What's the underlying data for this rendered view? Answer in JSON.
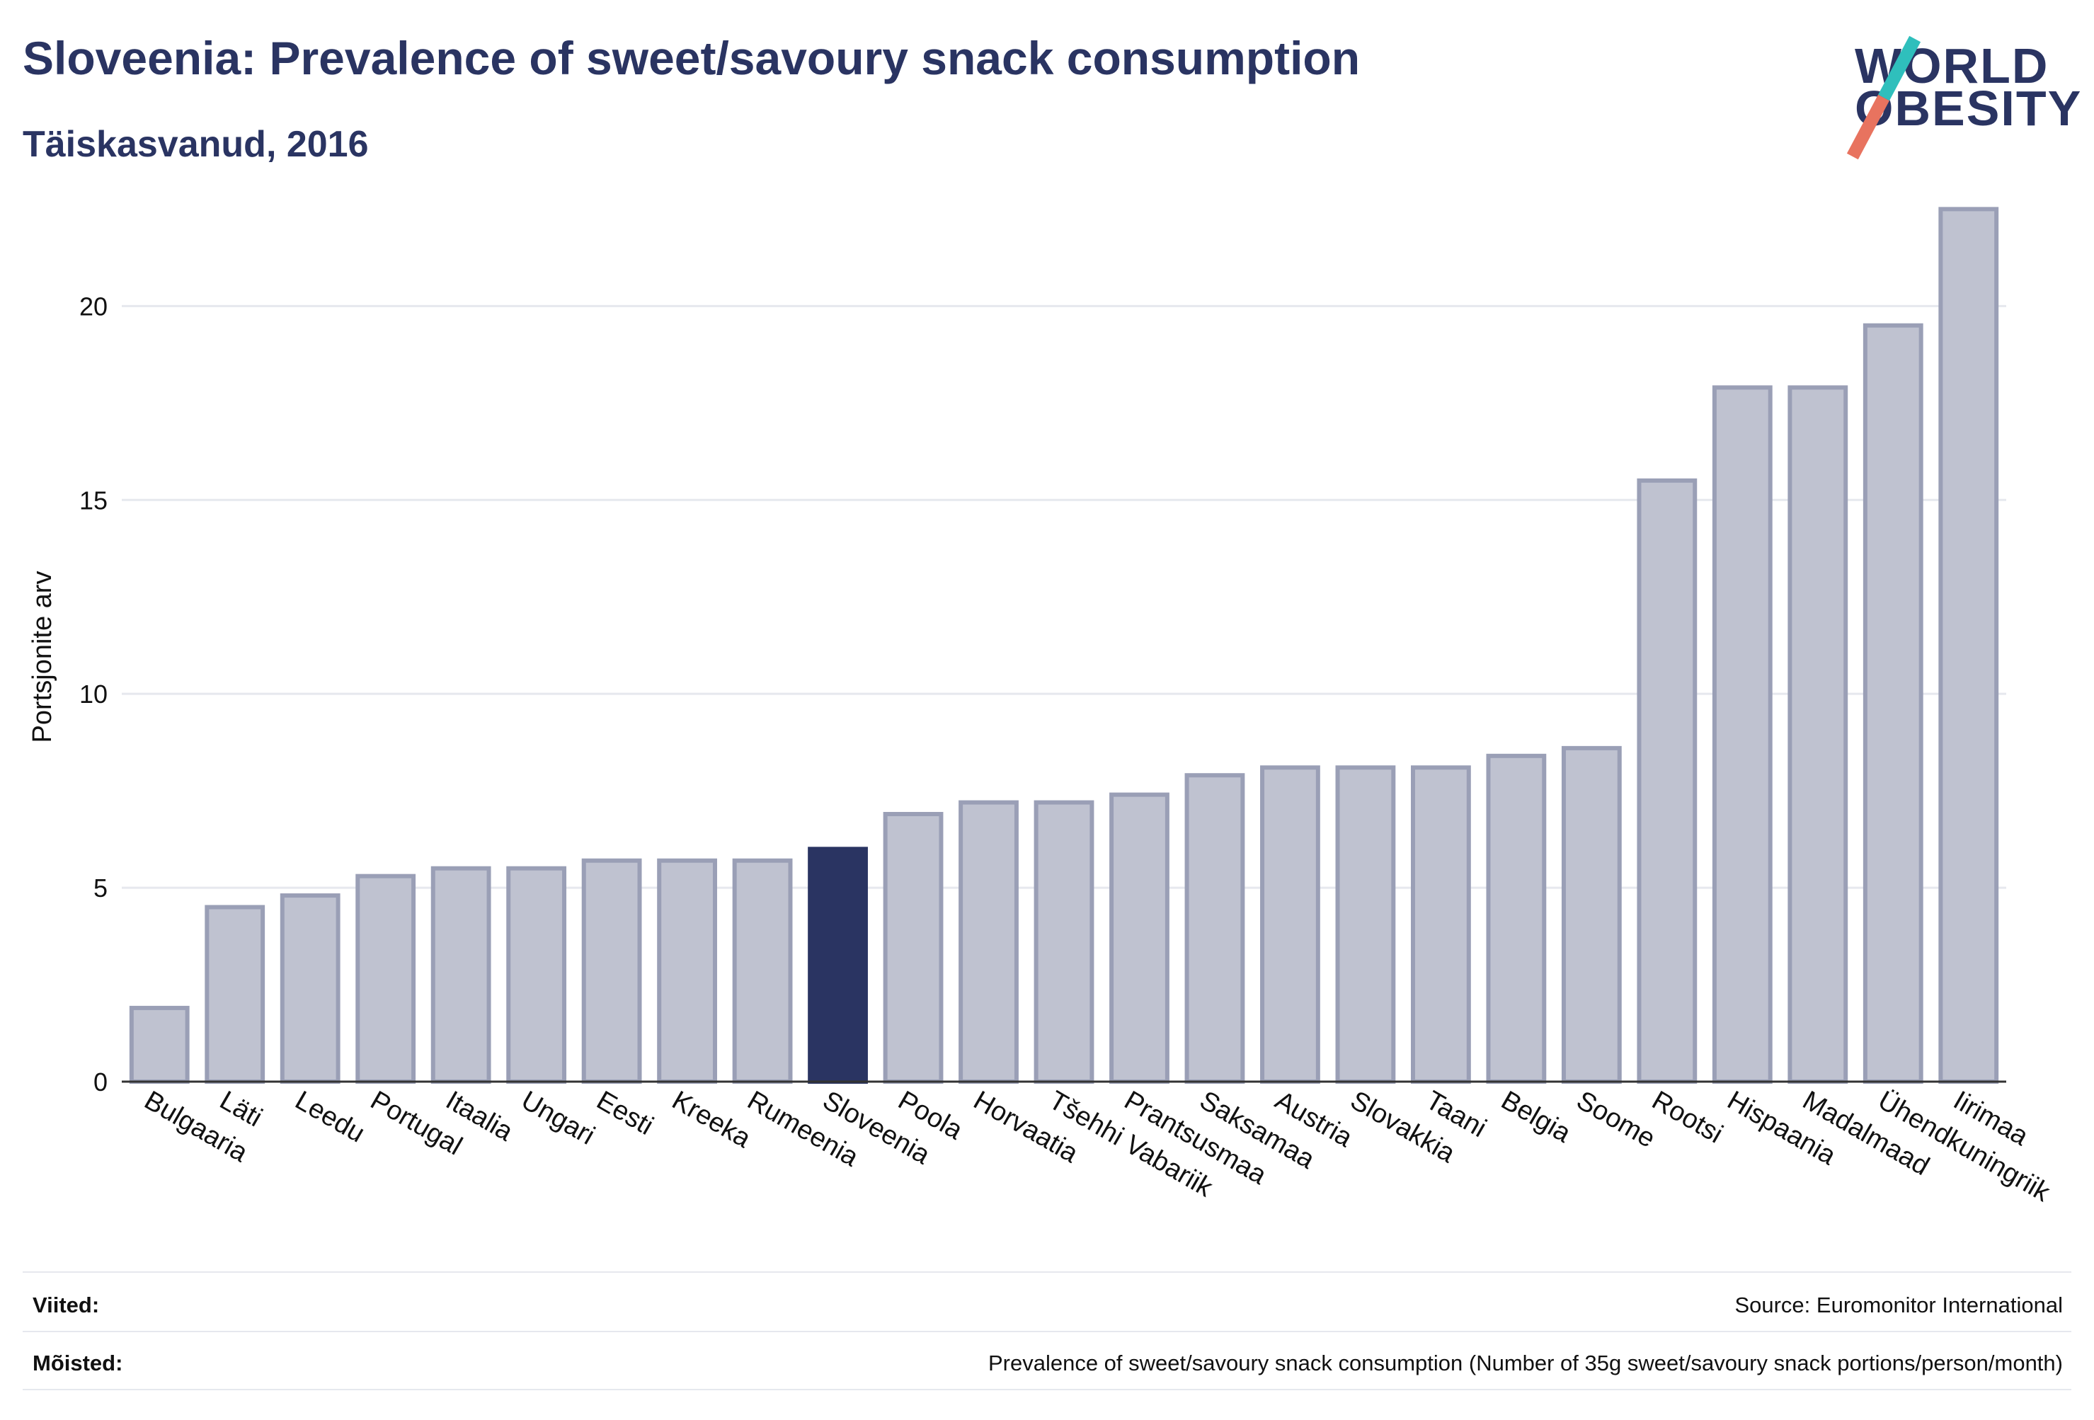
{
  "header": {
    "title": "Sloveenia: Prevalence of sweet/savoury snack consumption",
    "subtitle": "Täiskasvanud, 2016"
  },
  "logo": {
    "line1": "WORLD",
    "line2": "OBESITY",
    "colors": {
      "text": "#2a3462",
      "slash_top": "#2fbfbc",
      "slash_bottom": "#e8735f"
    }
  },
  "chart_data": {
    "type": "bar",
    "title": "Sloveenia: Prevalence of sweet/savoury snack consumption",
    "subtitle": "Täiskasvanud, 2016",
    "xlabel": "",
    "ylabel": "Portsjonite arv",
    "ylim": [
      0,
      23
    ],
    "yticks": [
      0,
      5,
      10,
      15,
      20
    ],
    "grid": true,
    "highlight": "Sloveenia",
    "colors": {
      "default": "#bfc2d0",
      "default_stroke": "#9a9fb6",
      "highlight": "#2a3462"
    },
    "categories": [
      "Bulgaaria",
      "Läti",
      "Leedu",
      "Portugal",
      "Itaalia",
      "Ungari",
      "Eesti",
      "Kreeka",
      "Rumeenia",
      "Sloveenia",
      "Poola",
      "Horvaatia",
      "Tšehhi Vabariik",
      "Prantsusmaa",
      "Saksamaa",
      "Austria",
      "Slovakkia",
      "Taani",
      "Belgia",
      "Soome",
      "Rootsi",
      "Hispaania",
      "Madalmaad",
      "Ühendkuningriik",
      "Iirimaa"
    ],
    "values": [
      1.9,
      4.5,
      4.8,
      5.3,
      5.5,
      5.5,
      5.7,
      5.7,
      5.7,
      6.0,
      6.9,
      7.2,
      7.2,
      7.4,
      7.9,
      8.1,
      8.1,
      8.1,
      8.4,
      8.6,
      15.5,
      17.9,
      17.9,
      19.5,
      22.5
    ]
  },
  "footer": {
    "references_label": "Viited:",
    "references_value": "Source: Euromonitor International",
    "definitions_label": "Mõisted:",
    "definitions_value": "Prevalence of sweet/savoury snack consumption (Number of 35g sweet/savoury snack portions/person/month)"
  }
}
